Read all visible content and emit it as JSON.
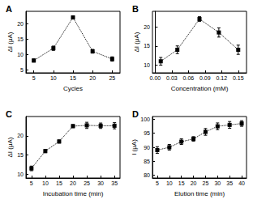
{
  "chart_data": [
    {
      "type": "line",
      "title": "A",
      "x_label": "Cycles",
      "y_label": "ΔI (μA)",
      "x": [
        5,
        10,
        15,
        20,
        25
      ],
      "values": [
        8,
        12,
        22,
        11,
        8.5
      ],
      "errors": [
        0.5,
        0.7,
        0.5,
        0.6,
        0.7
      ],
      "xlim": [
        3,
        27
      ],
      "xticks": [
        5,
        10,
        15,
        20,
        25
      ],
      "ylim": [
        4,
        24
      ],
      "yticks": [
        5,
        10,
        15,
        20
      ],
      "color": "#000000",
      "marker": "square",
      "line_style": "dotted"
    },
    {
      "type": "line",
      "title": "B",
      "x_label": "Concentration (mM)",
      "y_label": "ΔI (μA)",
      "x": [
        0.01,
        0.04,
        0.08,
        0.115,
        0.15
      ],
      "values": [
        11,
        14,
        22,
        18.5,
        14
      ],
      "errors": [
        1,
        1,
        0.6,
        1.2,
        1.2
      ],
      "xlim": [
        -0.005,
        0.165
      ],
      "xticks": [
        {
          "value": 0,
          "label": "0.00"
        },
        {
          "value": 0.03,
          "label": "0.03"
        },
        {
          "value": 0.06,
          "label": "0.06"
        },
        {
          "value": 0.09,
          "label": "0.09"
        },
        {
          "value": 0.12,
          "label": "0.12"
        },
        {
          "value": 0.15,
          "label": "0.15"
        }
      ],
      "ylim": [
        8,
        24
      ],
      "yticks": [
        10,
        15,
        20
      ],
      "color": "#000000",
      "marker": "square",
      "line_style": "dotted"
    },
    {
      "type": "line",
      "title": "C",
      "x_label": "Incubation time (min)",
      "y_label": "ΔI (μA)",
      "x": [
        5,
        10,
        15,
        20,
        25,
        30,
        35
      ],
      "values": [
        11.5,
        16,
        18.5,
        22.5,
        22.7,
        22.6,
        22.6
      ],
      "errors": [
        0.6,
        0.4,
        0.4,
        0.4,
        0.8,
        0.7,
        0.8
      ],
      "xlim": [
        3,
        37
      ],
      "xticks": [
        5,
        10,
        15,
        20,
        25,
        30,
        35
      ],
      "ylim": [
        9,
        25
      ],
      "yticks": [
        10,
        15,
        20
      ],
      "color": "#000000",
      "marker": "square",
      "line_style": "dotted"
    },
    {
      "type": "line",
      "title": "D",
      "x_label": "Elution time (min)",
      "y_label": "I (μA)",
      "x": [
        5,
        10,
        15,
        20,
        25,
        30,
        35,
        40
      ],
      "values": [
        89,
        90,
        92,
        93,
        95.5,
        97.5,
        98,
        98.5
      ],
      "errors": [
        1.2,
        1,
        1,
        0.8,
        1.2,
        1.2,
        1.2,
        1
      ],
      "xlim": [
        3,
        42
      ],
      "xticks": [
        5,
        10,
        15,
        20,
        25,
        30,
        35,
        40
      ],
      "ylim": [
        79,
        101
      ],
      "yticks": [
        80,
        85,
        90,
        95,
        100
      ],
      "color": "#000000",
      "marker": "square",
      "line_style": "dotted"
    }
  ]
}
